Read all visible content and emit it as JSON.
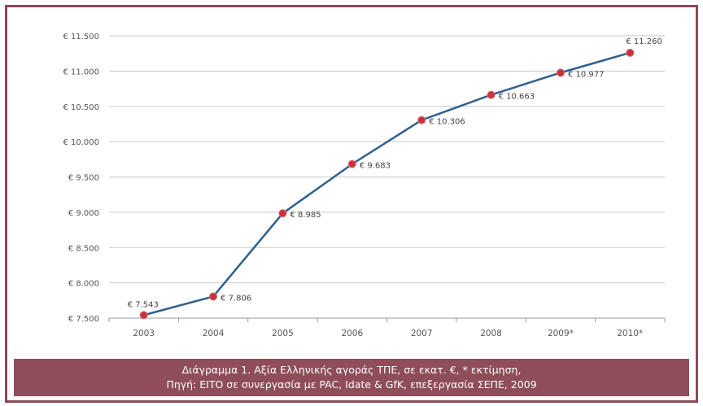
{
  "caption": {
    "line1": "Διάγραμμα 1. Αξία Ελληνικής αγοράς ΤΠΕ, σε εκατ. €, * εκτίμηση,",
    "line2": "Πηγή: EITO σε συνεργασία με PAC, Idate & GfK, επεξεργασία ΣΕΠΕ, 2009"
  },
  "chart_data": {
    "type": "line",
    "categories": [
      "2003",
      "2004",
      "2005",
      "2006",
      "2007",
      "2008",
      "2009*",
      "2010*"
    ],
    "series": [
      {
        "values": [
          7543,
          7806,
          8985,
          9683,
          10306,
          10663,
          10977,
          11260
        ],
        "data_labels": [
          "€ 7.543",
          "€ 7.806",
          "€ 8.985",
          "€ 9.683",
          "€ 10.306",
          "€ 10.663",
          "€ 10.977",
          "€ 11.260"
        ],
        "line_color": "#2f5f8f",
        "marker_color": "#c8323c"
      }
    ],
    "yticks": [
      7500,
      8000,
      8500,
      9000,
      9500,
      10000,
      10500,
      11000,
      11500
    ],
    "ytick_labels": [
      "€ 7.500",
      "€ 8.000",
      "€ 8.500",
      "€ 9.000",
      "€ 9.500",
      "€ 10.000",
      "€ 10.500",
      "€ 11.000",
      "€ 11.500"
    ],
    "ylim": [
      7500,
      11500
    ],
    "grid": true,
    "legend": "none"
  }
}
